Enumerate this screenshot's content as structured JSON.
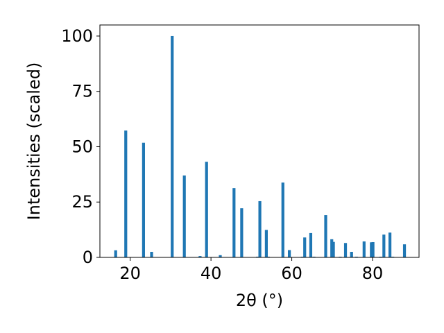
{
  "chart_data": {
    "type": "bar",
    "title": "",
    "xlabel": "2θ (°)",
    "ylabel": "Intensities (scaled)",
    "xlim": [
      12.5,
      91.5
    ],
    "ylim": [
      0,
      105
    ],
    "xticks": [
      20,
      40,
      60,
      80
    ],
    "yticks": [
      0,
      25,
      50,
      75,
      100
    ],
    "bar_color": "#1f77b4",
    "grid": false,
    "legend": "none",
    "x": [
      16.4,
      18.9,
      23.3,
      25.3,
      30.4,
      33.4,
      37.3,
      38.9,
      42.3,
      45.7,
      47.6,
      51.5,
      52.1,
      53.7,
      54.2,
      57.8,
      59.4,
      62.6,
      63.2,
      64.7,
      65.5,
      68.4,
      69.9,
      70.3,
      72.0,
      73.3,
      74.8,
      76.0,
      77.9,
      79.7,
      80.1,
      82.0,
      82.8,
      84.3,
      85.0,
      87.9
    ],
    "values": [
      3.2,
      57.3,
      51.8,
      2.5,
      100.0,
      37.0,
      0.6,
      43.2,
      1.0,
      31.3,
      22.2,
      0.3,
      25.4,
      12.4,
      0.3,
      33.8,
      3.3,
      0.3,
      9.0,
      11.0,
      0.3,
      19.1,
      8.2,
      7.0,
      0.3,
      6.5,
      2.5,
      0.3,
      7.2,
      6.8,
      6.9,
      0.3,
      10.3,
      11.2,
      0.3,
      5.9
    ]
  }
}
